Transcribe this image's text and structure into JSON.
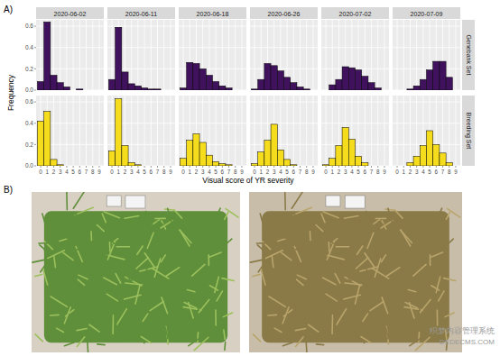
{
  "chart_data": {
    "type": "bar",
    "xlabel": "Visual score of YR severity",
    "ylabel": "Frequency",
    "categories": [
      0,
      1,
      2,
      3,
      4,
      5,
      6,
      7,
      8,
      9
    ],
    "facet_columns": [
      "2020-06-02",
      "2020-06-11",
      "2020-06-18",
      "2020-06-26",
      "2020-07-02",
      "2020-07-09"
    ],
    "ylim": [
      0,
      0.66
    ],
    "yticks": [
      {
        "value": 0,
        "label": "0.0"
      },
      0.2,
      0.4,
      0.6
    ],
    "grid": true,
    "series": [
      {
        "name": "Genebank Set",
        "color": "#40125e",
        "values": [
          [
            0.08,
            0.64,
            0.14,
            0.07,
            0.03,
            0,
            0.01,
            0,
            0,
            0
          ],
          [
            0.1,
            0.59,
            0.17,
            0.06,
            0.04,
            0.02,
            0.01,
            0.01,
            0,
            0
          ],
          [
            0.02,
            0.26,
            0.25,
            0.2,
            0.14,
            0.08,
            0.04,
            0.02,
            0,
            0
          ],
          [
            0.01,
            0.1,
            0.25,
            0.23,
            0.18,
            0.12,
            0.07,
            0.03,
            0.01,
            0
          ],
          [
            0,
            0.05,
            0.1,
            0.22,
            0.21,
            0.19,
            0.13,
            0.07,
            0.02,
            0
          ],
          [
            0,
            0,
            0.01,
            0.04,
            0.1,
            0.19,
            0.27,
            0.27,
            0.12,
            0
          ]
        ]
      },
      {
        "name": "Breeding Set",
        "color": "#f5dc1c",
        "values": [
          [
            0.42,
            0.51,
            0.06,
            0.01,
            0,
            0,
            0,
            0,
            0,
            0
          ],
          [
            0.14,
            0.63,
            0.19,
            0.03,
            0.01,
            0,
            0,
            0,
            0,
            0
          ],
          [
            0.07,
            0.24,
            0.3,
            0.22,
            0.1,
            0.04,
            0.02,
            0.01,
            0,
            0
          ],
          [
            0.02,
            0.13,
            0.24,
            0.39,
            0.15,
            0.06,
            0.01,
            0,
            0,
            0
          ],
          [
            0.01,
            0.07,
            0.19,
            0.36,
            0.25,
            0.09,
            0.03,
            0,
            0,
            0
          ],
          [
            0,
            0,
            0.03,
            0.09,
            0.19,
            0.33,
            0.2,
            0.12,
            0.03,
            0
          ]
        ]
      }
    ]
  },
  "panel_labels": [
    "A)",
    "B)"
  ],
  "watermark": [
    "织梦内容管理系统",
    "DEDECMS.COM"
  ]
}
